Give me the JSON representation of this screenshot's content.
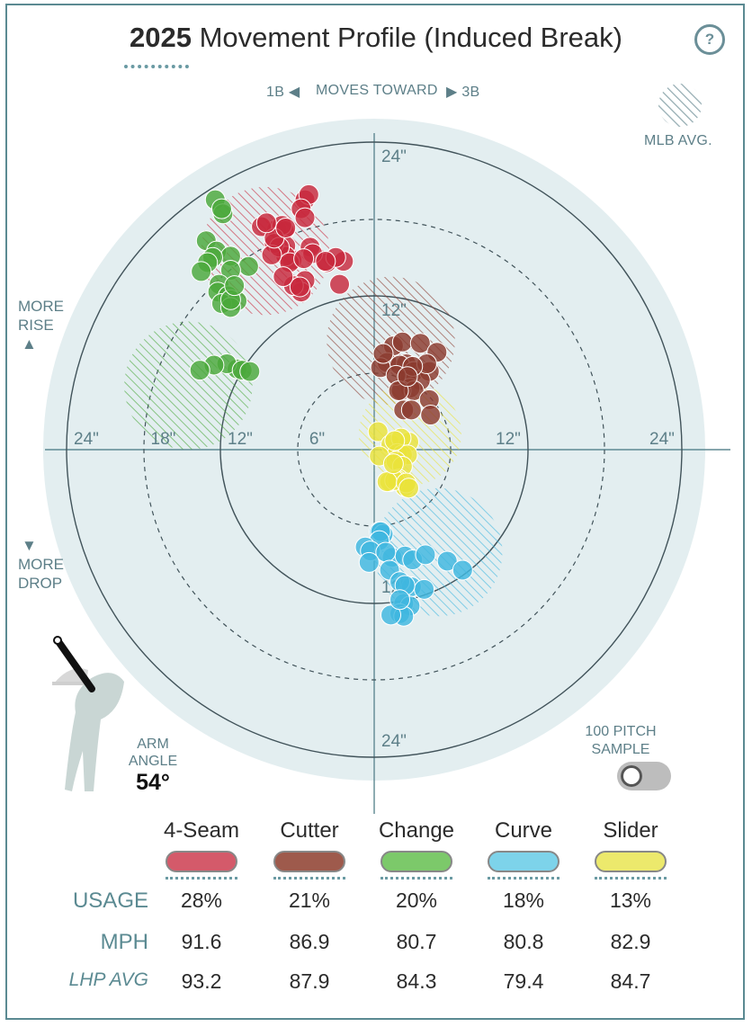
{
  "title": {
    "year": "2025",
    "text": "Movement Profile (Induced Break)"
  },
  "help_label": "?",
  "direction": {
    "left": "1B ◀",
    "middle": "MOVES TOWARD",
    "right": "▶ 3B"
  },
  "mlb_avg_label": "MLB AVG.",
  "more_rise": {
    "line1": "MORE",
    "line2": "RISE",
    "arrow": "▲"
  },
  "more_drop": {
    "arrow": "▼",
    "line1": "MORE",
    "line2": "DROP"
  },
  "arm_angle": {
    "line1": "ARM",
    "line2": "ANGLE",
    "value": "54°"
  },
  "sample": {
    "line1": "100 PITCH",
    "line2": "SAMPLE"
  },
  "table": {
    "row_labels": {
      "usage": "USAGE",
      "mph": "MPH",
      "lhp": "LHP AVG"
    },
    "pitches": [
      {
        "name": "4-Seam",
        "color": "#d45a6a",
        "usage": "28%",
        "mph": "91.6",
        "lhp": "93.2"
      },
      {
        "name": "Cutter",
        "color": "#9e5a4c",
        "usage": "21%",
        "mph": "86.9",
        "lhp": "87.9"
      },
      {
        "name": "Change",
        "color": "#7cc96a",
        "usage": "20%",
        "mph": "80.7",
        "lhp": "84.3"
      },
      {
        "name": "Curve",
        "color": "#7dd3ea",
        "usage": "18%",
        "mph": "80.8",
        "lhp": "79.4"
      },
      {
        "name": "Slider",
        "color": "#ece96c",
        "usage": "13%",
        "mph": "82.9",
        "lhp": "84.7"
      }
    ]
  },
  "chart_data": {
    "type": "scatter",
    "title": "2025 Movement Profile (Induced Break)",
    "x_unit": "inches horizontal break",
    "y_unit": "inches induced vertical break",
    "rings": [
      6,
      12,
      18,
      24
    ],
    "ring_labels": {
      "left": [
        "24\"",
        "18\"",
        "12\"",
        "6\""
      ],
      "right": [
        "12\"",
        "24\""
      ],
      "top": [
        "24\"",
        "12\""
      ],
      "bottom": [
        "12\"",
        "24\""
      ]
    },
    "xlim": [
      -24,
      24
    ],
    "ylim": [
      -24,
      24
    ],
    "series": [
      {
        "name": "4-Seam",
        "color": "#c8283c",
        "avg": [
          -8.5,
          15.5
        ],
        "avg_radius": 5.0,
        "points": [
          [
            -5.4,
            19.5
          ],
          [
            -5.1,
            19.9
          ],
          [
            -5.7,
            18.8
          ],
          [
            -5.4,
            18.1
          ],
          [
            -7.6,
            17.2
          ],
          [
            -7.0,
            17.1
          ],
          [
            -8.8,
            17.4
          ],
          [
            -7.2,
            17.5
          ],
          [
            -6.9,
            15.9
          ],
          [
            -5.0,
            15.8
          ],
          [
            -6.4,
            14.8
          ],
          [
            -6.9,
            15.1
          ],
          [
            -7.8,
            16.1
          ],
          [
            -7.4,
            15.8
          ],
          [
            -3.7,
            14.6
          ],
          [
            -2.4,
            14.7
          ],
          [
            -3.0,
            15.0
          ],
          [
            -4.8,
            15.3
          ],
          [
            -3.8,
            14.7
          ],
          [
            -6.6,
            14.6
          ],
          [
            -5.5,
            14.9
          ],
          [
            -5.4,
            13.2
          ],
          [
            -5.7,
            12.3
          ],
          [
            -2.7,
            12.9
          ],
          [
            -6.3,
            12.8
          ],
          [
            -5.8,
            12.7
          ],
          [
            -8.0,
            15.2
          ],
          [
            -7.8,
            16.5
          ],
          [
            -8.4,
            17.7
          ],
          [
            -7.1,
            13.5
          ],
          [
            -6.9,
            17.3
          ]
        ]
      },
      {
        "name": "Cutter",
        "color": "#8b3a2e",
        "avg": [
          1.3,
          8.5
        ],
        "avg_radius": 5.0,
        "points": [
          [
            1.5,
            8.1
          ],
          [
            2.2,
            8.4
          ],
          [
            3.6,
            8.3
          ],
          [
            4.9,
            7.6
          ],
          [
            1.0,
            6.8
          ],
          [
            2.5,
            6.7
          ],
          [
            2.0,
            6.6
          ],
          [
            3.1,
            6.1
          ],
          [
            4.3,
            6.1
          ],
          [
            3.6,
            5.4
          ],
          [
            4.1,
            6.7
          ],
          [
            2.5,
            5.5
          ],
          [
            3.0,
            6.5
          ],
          [
            2.8,
            4.8
          ],
          [
            2.1,
            4.6
          ],
          [
            3.1,
            4.6
          ],
          [
            0.5,
            6.4
          ],
          [
            1.7,
            5.8
          ],
          [
            1.9,
            4.6
          ],
          [
            4.3,
            3.9
          ],
          [
            2.3,
            3.1
          ],
          [
            2.9,
            3.1
          ],
          [
            4.4,
            2.7
          ],
          [
            2.6,
            5.7
          ],
          [
            0.7,
            7.5
          ]
        ]
      },
      {
        "name": "Change",
        "color": "#4aa83a",
        "avg": [
          -14.5,
          5.0
        ],
        "avg_radius": 5.0,
        "points": [
          [
            -12.4,
            19.5
          ],
          [
            -11.8,
            18.4
          ],
          [
            -11.9,
            18.8
          ],
          [
            -13.1,
            16.3
          ],
          [
            -12.3,
            15.5
          ],
          [
            -11.2,
            15.1
          ],
          [
            -12.6,
            15.0
          ],
          [
            -9.8,
            14.3
          ],
          [
            -11.2,
            14.0
          ],
          [
            -12.1,
            12.9
          ],
          [
            -12.2,
            12.3
          ],
          [
            -11.4,
            12.0
          ],
          [
            -10.7,
            11.6
          ],
          [
            -11.9,
            11.4
          ],
          [
            -11.2,
            11.1
          ],
          [
            -11.2,
            11.7
          ],
          [
            -13.0,
            14.6
          ],
          [
            -13.5,
            13.9
          ],
          [
            -10.9,
            12.8
          ],
          [
            -10.7,
            6.3
          ],
          [
            -11.5,
            6.7
          ],
          [
            -10.3,
            6.2
          ],
          [
            -9.7,
            6.1
          ],
          [
            -12.5,
            6.6
          ],
          [
            -13.6,
            6.2
          ]
        ]
      },
      {
        "name": "Curve",
        "color": "#3fb7df",
        "avg": [
          5.0,
          -8.0
        ],
        "avg_radius": 5.0,
        "points": [
          [
            0.4,
            -6.4
          ],
          [
            0.7,
            -6.6
          ],
          [
            0.5,
            -6.4
          ],
          [
            0.4,
            -7.1
          ],
          [
            -0.7,
            -7.6
          ],
          [
            1.4,
            -8.4
          ],
          [
            2.4,
            -8.3
          ],
          [
            3.0,
            -8.6
          ],
          [
            4.0,
            -8.2
          ],
          [
            5.7,
            -8.7
          ],
          [
            6.9,
            -9.4
          ],
          [
            -0.3,
            -7.9
          ],
          [
            0.9,
            -8.0
          ],
          [
            -0.4,
            -8.8
          ],
          [
            1.2,
            -9.4
          ],
          [
            2.9,
            -10.7
          ],
          [
            3.9,
            -10.9
          ],
          [
            2.0,
            -10.3
          ],
          [
            2.4,
            -10.6
          ],
          [
            2.3,
            -12.0
          ],
          [
            2.8,
            -12.2
          ],
          [
            2.0,
            -12.8
          ],
          [
            2.3,
            -13.0
          ],
          [
            1.3,
            -12.9
          ],
          [
            2.0,
            -11.7
          ]
        ]
      },
      {
        "name": "Slider",
        "color": "#eae33a",
        "avg": [
          2.8,
          1.2
        ],
        "avg_radius": 4.0,
        "points": [
          [
            0.3,
            1.4
          ],
          [
            1.3,
            0.4
          ],
          [
            2.7,
            0.6
          ],
          [
            2.1,
            0.9
          ],
          [
            1.8,
            -0.3
          ],
          [
            2.2,
            -0.4
          ],
          [
            0.4,
            -0.5
          ],
          [
            2.6,
            -0.4
          ],
          [
            1.7,
            -0.9
          ],
          [
            2.2,
            -1.3
          ],
          [
            1.9,
            -2.3
          ],
          [
            1.2,
            -2.5
          ],
          [
            1.8,
            -2.4
          ],
          [
            2.4,
            -2.9
          ],
          [
            1.6,
            -2.4
          ],
          [
            1.0,
            -2.5
          ],
          [
            2.5,
            -2.6
          ],
          [
            2.7,
            -3.0
          ],
          [
            1.5,
            -1.1
          ],
          [
            1.6,
            0.7
          ]
        ]
      }
    ]
  }
}
